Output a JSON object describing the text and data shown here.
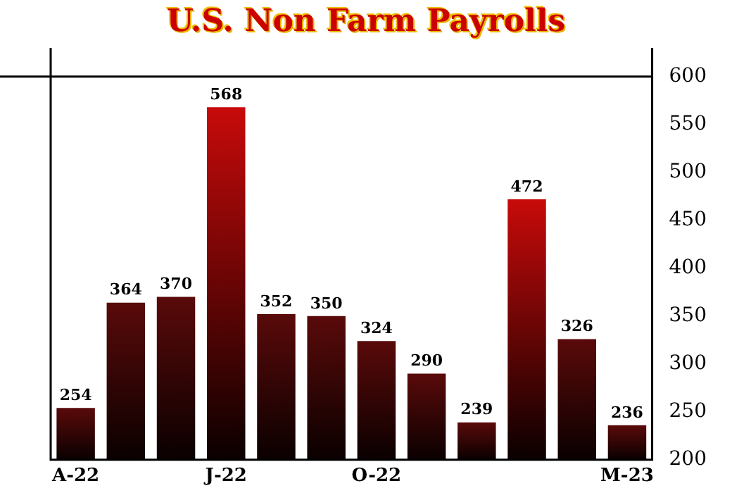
{
  "chart_data": {
    "type": "bar",
    "title": "U.S. Non Farm Payrolls",
    "categories": [
      "A-22",
      null,
      null,
      "J-22",
      null,
      null,
      "O-22",
      null,
      null,
      null,
      null,
      "M-23"
    ],
    "values": [
      254,
      364,
      370,
      568,
      352,
      350,
      324,
      290,
      239,
      472,
      326,
      236
    ],
    "colors": [
      "#5a0a0a",
      "#5a0a0a",
      "#5a0a0a",
      "#c80a0a",
      "#5a0a0a",
      "#5a0a0a",
      "#5a0a0a",
      "#5a0a0a",
      "#5a0a0a",
      "#c80a0a",
      "#5a0a0a",
      "#5a0a0a"
    ],
    "ylim": [
      200,
      600
    ],
    "yticks": [
      200,
      250,
      300,
      350,
      400,
      450,
      500,
      550,
      600
    ],
    "data_labels": true,
    "grid": false,
    "legend": false
  }
}
